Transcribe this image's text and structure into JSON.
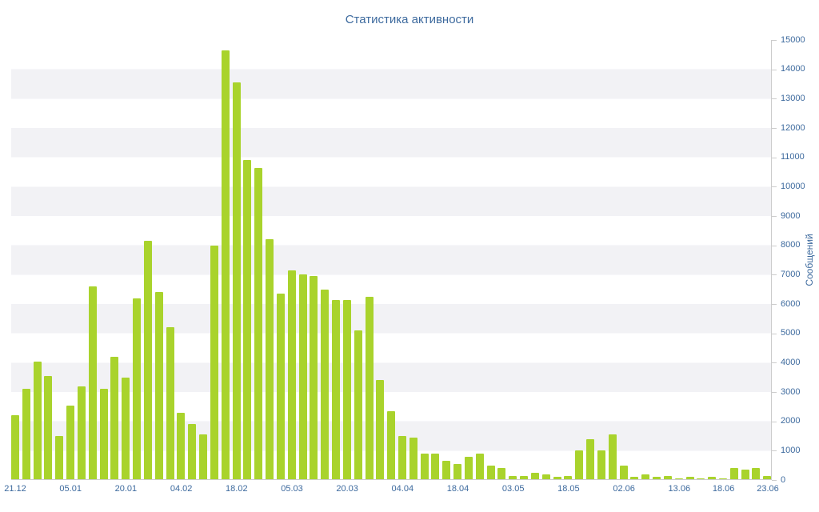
{
  "colors": {
    "bar": "#a9d32c",
    "text": "#3d6a9e",
    "axis_line": "#cccccc",
    "stripe": "#f2f2f5",
    "background": "#ffffff"
  },
  "chart_data": {
    "type": "bar",
    "title": "Статистика активности",
    "xlabel": "",
    "ylabel": "Сообщений",
    "ylim": [
      0,
      15000
    ],
    "grid": "horizontal-stripes",
    "legend": "none",
    "y_ticks": [
      0,
      1000,
      2000,
      3000,
      4000,
      5000,
      6000,
      7000,
      8000,
      9000,
      10000,
      11000,
      12000,
      13000,
      14000,
      15000
    ],
    "x_tick_labels": [
      {
        "index": 0,
        "label": "21.12"
      },
      {
        "index": 5,
        "label": "05.01"
      },
      {
        "index": 10,
        "label": "20.01"
      },
      {
        "index": 15,
        "label": "04.02"
      },
      {
        "index": 20,
        "label": "18.02"
      },
      {
        "index": 25,
        "label": "05.03"
      },
      {
        "index": 30,
        "label": "20.03"
      },
      {
        "index": 35,
        "label": "04.04"
      },
      {
        "index": 40,
        "label": "18.04"
      },
      {
        "index": 45,
        "label": "03.05"
      },
      {
        "index": 50,
        "label": "18.05"
      },
      {
        "index": 55,
        "label": "02.06"
      },
      {
        "index": 60,
        "label": "13.06"
      },
      {
        "index": 64,
        "label": "18.06"
      },
      {
        "index": 68,
        "label": "23.06"
      }
    ],
    "values": [
      2200,
      3100,
      4050,
      3550,
      1500,
      2550,
      3200,
      6600,
      3100,
      4200,
      3500,
      6200,
      8150,
      6400,
      5200,
      2300,
      1900,
      1550,
      8000,
      14650,
      13550,
      10900,
      10650,
      8200,
      6350,
      7150,
      7000,
      6950,
      6500,
      6150,
      6150,
      5100,
      6250,
      3400,
      2350,
      1500,
      1450,
      900,
      900,
      650,
      550,
      800,
      900,
      500,
      400,
      150,
      150,
      250,
      200,
      100,
      150,
      1000,
      1400,
      1000,
      1550,
      500,
      100,
      200,
      100,
      150,
      50,
      100,
      50,
      100,
      50,
      400,
      350,
      400,
      150
    ]
  }
}
